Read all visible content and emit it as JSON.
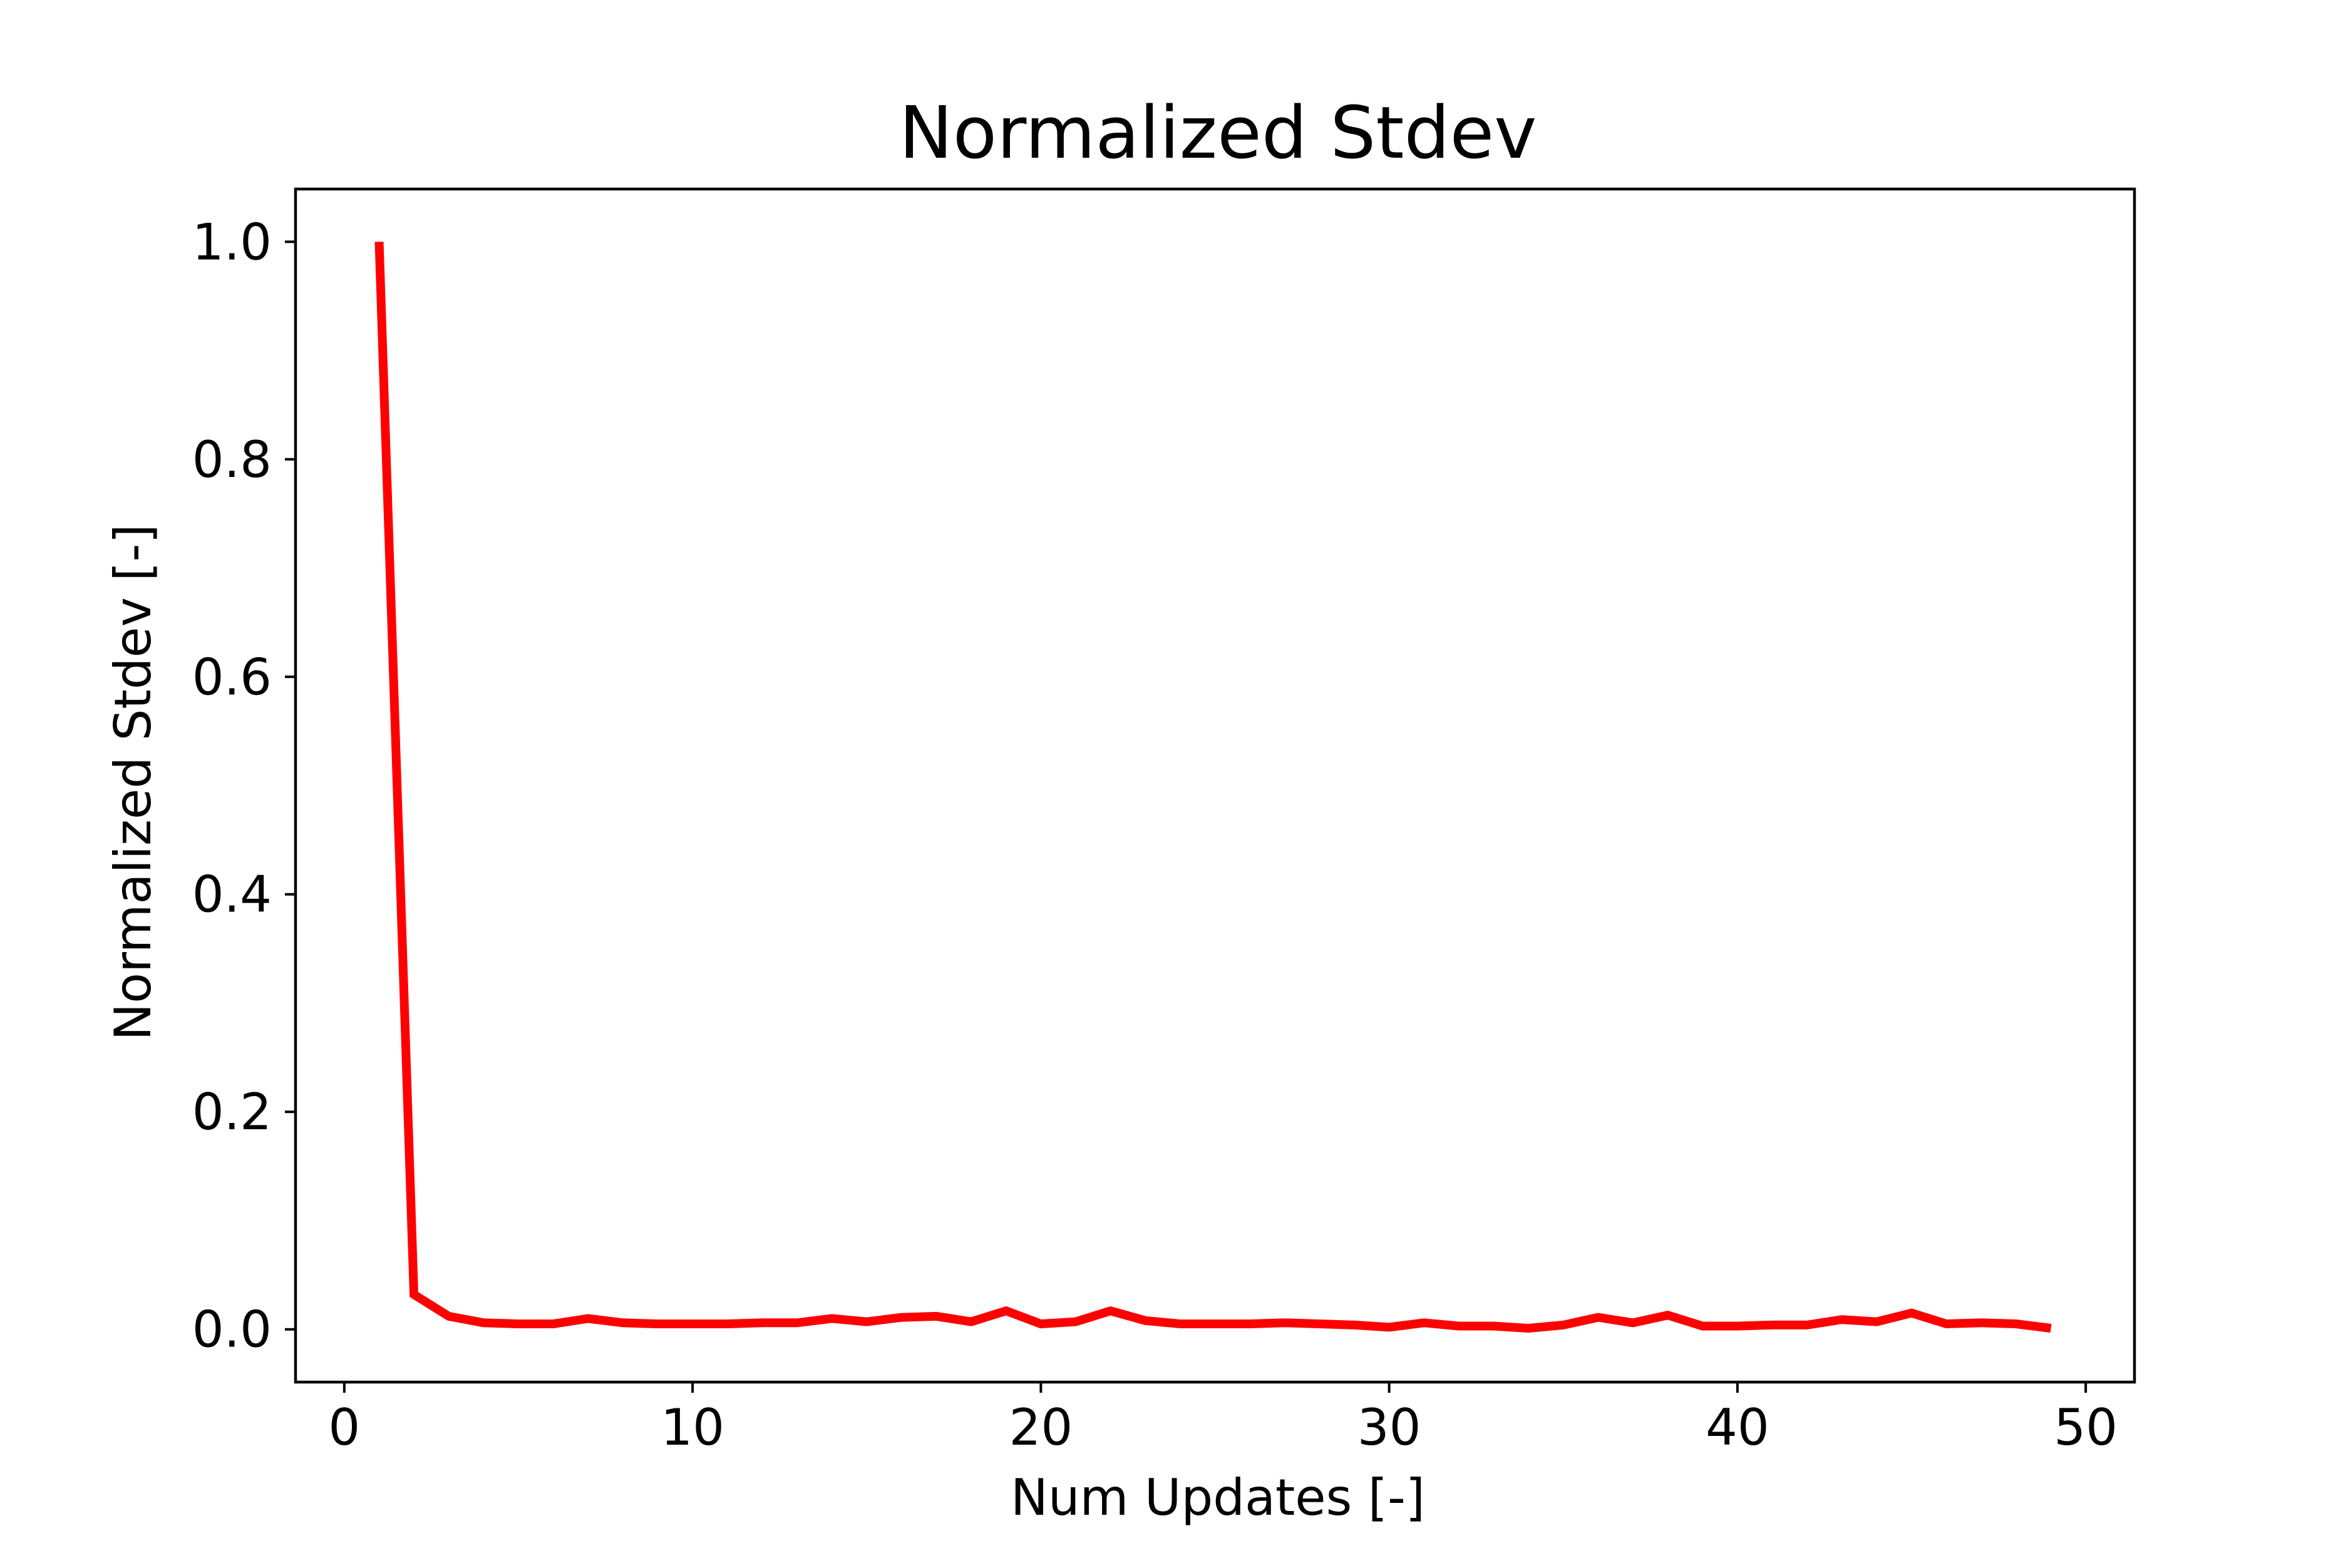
{
  "chart_data": {
    "type": "line",
    "title": "Normalized Stdev",
    "xlabel": "Num Updates [-]",
    "ylabel": "Normalized Stdev [-]",
    "xlim": [
      -1.4,
      51.4
    ],
    "ylim": [
      -0.0485,
      1.0485
    ],
    "x_ticks": [
      0,
      10,
      20,
      30,
      40,
      50
    ],
    "x_tick_labels": [
      "0",
      "10",
      "20",
      "30",
      "40",
      "50"
    ],
    "y_ticks": [
      0.0,
      0.2,
      0.4,
      0.6,
      0.8,
      1.0
    ],
    "y_tick_labels": [
      "0.0",
      "0.2",
      "0.4",
      "0.6",
      "0.8",
      "1.0"
    ],
    "grid": false,
    "legend": "none",
    "series": [
      {
        "color": "#ff0000",
        "x": [
          1,
          2,
          3,
          4,
          5,
          6,
          7,
          8,
          9,
          10,
          11,
          12,
          13,
          14,
          15,
          16,
          17,
          18,
          19,
          20,
          21,
          22,
          23,
          24,
          25,
          26,
          27,
          28,
          29,
          30,
          31,
          32,
          33,
          34,
          35,
          36,
          37,
          38,
          39,
          40,
          41,
          42,
          43,
          44,
          45,
          46,
          47,
          48,
          49
        ],
        "y": [
          1.0,
          0.032,
          0.012,
          0.006,
          0.005,
          0.005,
          0.01,
          0.006,
          0.005,
          0.005,
          0.005,
          0.006,
          0.006,
          0.01,
          0.007,
          0.011,
          0.012,
          0.007,
          0.017,
          0.005,
          0.007,
          0.017,
          0.008,
          0.005,
          0.005,
          0.005,
          0.006,
          0.005,
          0.004,
          0.002,
          0.006,
          0.003,
          0.003,
          0.001,
          0.004,
          0.011,
          0.006,
          0.013,
          0.003,
          0.003,
          0.004,
          0.004,
          0.009,
          0.007,
          0.015,
          0.005,
          0.006,
          0.005,
          0.001
        ]
      }
    ]
  }
}
